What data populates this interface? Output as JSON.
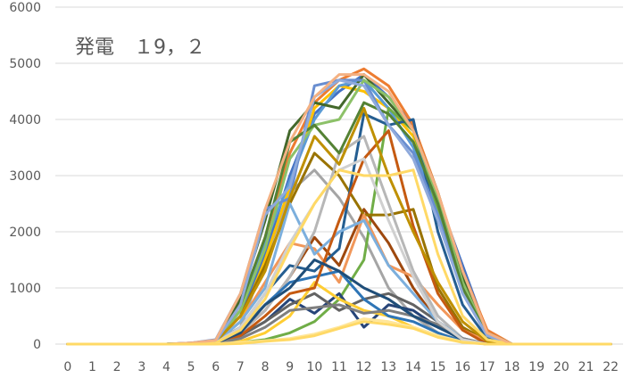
{
  "chart_data": {
    "type": "line",
    "title": "発電　１9，２",
    "xlabel": "",
    "ylabel": "",
    "categories": [
      "0",
      "1",
      "2",
      "3",
      "4",
      "5",
      "6",
      "7",
      "8",
      "9",
      "10",
      "11",
      "12",
      "13",
      "14",
      "15",
      "16",
      "17",
      "18",
      "19",
      "20",
      "21",
      "22"
    ],
    "ylim": [
      0,
      6000
    ],
    "yticks": [
      0,
      1000,
      2000,
      3000,
      4000,
      5000,
      6000
    ],
    "grid": true,
    "legend": "none",
    "series": [
      {
        "color": "#4472C4",
        "values": [
          0,
          0,
          0,
          0,
          0,
          20,
          60,
          500,
          1600,
          3000,
          4100,
          4500,
          4800,
          4400,
          3900,
          2600,
          1400,
          200,
          0,
          0,
          0,
          0,
          0
        ]
      },
      {
        "color": "#ED7D31",
        "values": [
          0,
          0,
          0,
          0,
          0,
          20,
          50,
          700,
          1900,
          3400,
          4300,
          4700,
          4900,
          4600,
          3900,
          2700,
          1300,
          250,
          0,
          0,
          0,
          0,
          0
        ]
      },
      {
        "color": "#A5A5A5",
        "values": [
          0,
          0,
          0,
          0,
          0,
          10,
          40,
          300,
          1500,
          2700,
          3100,
          2600,
          1900,
          1000,
          500,
          200,
          50,
          0,
          0,
          0,
          0,
          0,
          0
        ]
      },
      {
        "color": "#FFC000",
        "values": [
          0,
          0,
          0,
          0,
          0,
          10,
          40,
          400,
          1500,
          2800,
          4200,
          4600,
          4500,
          4200,
          3700,
          2500,
          1200,
          200,
          0,
          0,
          0,
          0,
          0
        ]
      },
      {
        "color": "#5B9BD5",
        "values": [
          0,
          0,
          0,
          0,
          0,
          10,
          30,
          600,
          1800,
          2900,
          4000,
          4600,
          4700,
          4200,
          3500,
          2400,
          1100,
          200,
          0,
          0,
          0,
          0,
          0
        ]
      },
      {
        "color": "#70AD47",
        "values": [
          0,
          0,
          0,
          0,
          0,
          0,
          10,
          30,
          80,
          200,
          400,
          800,
          1500,
          4200,
          3800,
          2400,
          1000,
          150,
          0,
          0,
          0,
          0,
          0
        ]
      },
      {
        "color": "#264478",
        "values": [
          0,
          0,
          0,
          0,
          0,
          0,
          20,
          150,
          400,
          800,
          550,
          900,
          300,
          700,
          600,
          300,
          100,
          0,
          0,
          0,
          0,
          0,
          0
        ]
      },
      {
        "color": "#9E480E",
        "values": [
          0,
          0,
          0,
          0,
          0,
          0,
          20,
          200,
          600,
          1200,
          1900,
          1400,
          2400,
          1800,
          1000,
          400,
          100,
          0,
          0,
          0,
          0,
          0,
          0
        ]
      },
      {
        "color": "#636363",
        "values": [
          0,
          0,
          0,
          0,
          0,
          0,
          20,
          150,
          400,
          700,
          900,
          600,
          800,
          900,
          700,
          400,
          100,
          0,
          0,
          0,
          0,
          0,
          0
        ]
      },
      {
        "color": "#997300",
        "values": [
          0,
          0,
          0,
          0,
          0,
          10,
          40,
          500,
          1400,
          2500,
          3400,
          3000,
          2300,
          2300,
          2400,
          1000,
          300,
          50,
          0,
          0,
          0,
          0,
          0
        ]
      },
      {
        "color": "#255E91",
        "values": [
          0,
          0,
          0,
          0,
          0,
          10,
          30,
          300,
          900,
          1400,
          1300,
          1700,
          4100,
          3900,
          4000,
          2000,
          700,
          100,
          0,
          0,
          0,
          0,
          0
        ]
      },
      {
        "color": "#43682B",
        "values": [
          0,
          0,
          0,
          0,
          0,
          10,
          60,
          800,
          2200,
          3800,
          4300,
          4200,
          4800,
          4300,
          3800,
          2700,
          1200,
          200,
          0,
          0,
          0,
          0,
          0
        ]
      },
      {
        "color": "#698ED0",
        "values": [
          0,
          0,
          0,
          0,
          0,
          20,
          80,
          900,
          2400,
          2600,
          4600,
          4700,
          4700,
          3900,
          3400,
          2300,
          900,
          150,
          0,
          0,
          0,
          0,
          0
        ]
      },
      {
        "color": "#F1975A",
        "values": [
          0,
          0,
          0,
          0,
          0,
          10,
          40,
          400,
          1100,
          1800,
          1700,
          1100,
          2300,
          1400,
          1200,
          700,
          250,
          50,
          0,
          0,
          0,
          0,
          0
        ]
      },
      {
        "color": "#B7B7B7",
        "values": [
          0,
          0,
          0,
          0,
          0,
          0,
          20,
          200,
          600,
          1200,
          2000,
          3400,
          3700,
          2500,
          1300,
          500,
          100,
          0,
          0,
          0,
          0,
          0,
          0
        ]
      },
      {
        "color": "#FFCD33",
        "values": [
          0,
          0,
          0,
          0,
          0,
          0,
          10,
          50,
          200,
          500,
          1100,
          800,
          600,
          500,
          300,
          150,
          50,
          0,
          0,
          0,
          0,
          0,
          0
        ]
      },
      {
        "color": "#7CAFDD",
        "values": [
          0,
          0,
          0,
          0,
          0,
          10,
          30,
          400,
          1000,
          2500,
          1600,
          2000,
          2200,
          1400,
          900,
          400,
          100,
          0,
          0,
          0,
          0,
          0,
          0
        ]
      },
      {
        "color": "#8CC168",
        "values": [
          0,
          0,
          0,
          0,
          0,
          10,
          40,
          600,
          1700,
          3300,
          3900,
          4000,
          4700,
          4400,
          3800,
          2600,
          1100,
          150,
          0,
          0,
          0,
          0,
          0
        ]
      },
      {
        "color": "#2E75B6",
        "values": [
          0,
          0,
          0,
          0,
          0,
          10,
          30,
          250,
          700,
          1100,
          1200,
          1300,
          800,
          500,
          400,
          200,
          50,
          0,
          0,
          0,
          0,
          0,
          0
        ]
      },
      {
        "color": "#C55A11",
        "values": [
          0,
          0,
          0,
          0,
          0,
          0,
          20,
          150,
          500,
          900,
          1000,
          2200,
          3300,
          3800,
          2100,
          900,
          250,
          0,
          0,
          0,
          0,
          0,
          0
        ]
      },
      {
        "color": "#7F7F7F",
        "values": [
          0,
          0,
          0,
          0,
          0,
          0,
          15,
          100,
          300,
          600,
          650,
          700,
          550,
          600,
          500,
          350,
          100,
          0,
          0,
          0,
          0,
          0,
          0
        ]
      },
      {
        "color": "#BF9000",
        "values": [
          0,
          0,
          0,
          0,
          0,
          10,
          40,
          500,
          1300,
          2600,
          3700,
          3200,
          4200,
          3000,
          2000,
          1100,
          400,
          50,
          0,
          0,
          0,
          0,
          0
        ]
      },
      {
        "color": "#1F4E79",
        "values": [
          0,
          0,
          0,
          0,
          0,
          0,
          20,
          200,
          700,
          1000,
          1500,
          1300,
          1000,
          800,
          500,
          300,
          80,
          0,
          0,
          0,
          0,
          0,
          0
        ]
      },
      {
        "color": "#548235",
        "values": [
          0,
          0,
          0,
          0,
          0,
          10,
          50,
          700,
          1900,
          3600,
          3900,
          3400,
          4300,
          4100,
          3600,
          2500,
          1000,
          150,
          0,
          0,
          0,
          0,
          0
        ]
      },
      {
        "color": "#8FAADC",
        "values": [
          0,
          0,
          0,
          0,
          0,
          10,
          50,
          700,
          2300,
          2800,
          4400,
          4700,
          4600,
          3900,
          3300,
          2200,
          900,
          150,
          0,
          0,
          0,
          0,
          0
        ]
      },
      {
        "color": "#D0D0D0",
        "values": [
          0,
          0,
          0,
          0,
          0,
          0,
          20,
          300,
          900,
          1800,
          2500,
          3100,
          3300,
          2200,
          1200,
          400,
          80,
          0,
          0,
          0,
          0,
          0,
          0
        ]
      },
      {
        "color": "#FFD966",
        "values": [
          0,
          0,
          0,
          0,
          0,
          0,
          20,
          250,
          800,
          1700,
          2500,
          3100,
          3000,
          3000,
          3100,
          1600,
          500,
          80,
          0,
          0,
          0,
          0,
          0
        ]
      },
      {
        "color": "#F4B183",
        "values": [
          0,
          0,
          0,
          0,
          0,
          20,
          70,
          900,
          2400,
          3600,
          4400,
          4800,
          4800,
          4500,
          3800,
          2700,
          1300,
          200,
          0,
          0,
          0,
          0,
          0
        ]
      },
      {
        "color": "#FFE699",
        "values": [
          0,
          0,
          0,
          0,
          0,
          0,
          5,
          30,
          60,
          100,
          180,
          300,
          450,
          400,
          300,
          150,
          40,
          0,
          0,
          0,
          0,
          0,
          0
        ]
      },
      {
        "color": "#FFD966",
        "values": [
          0,
          0,
          0,
          0,
          0,
          0,
          0,
          10,
          50,
          80,
          150,
          280,
          400,
          350,
          280,
          120,
          30,
          0,
          0,
          0,
          0,
          0,
          0
        ]
      }
    ]
  }
}
